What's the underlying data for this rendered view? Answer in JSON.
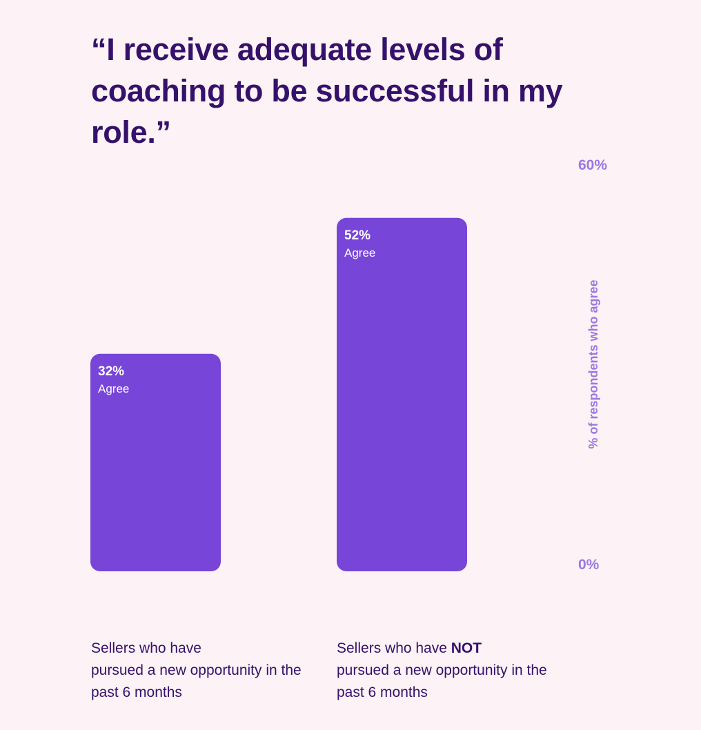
{
  "chart_data": {
    "type": "bar",
    "title": "“I receive adequate levels of coaching to be successful in my role.”",
    "ylabel": "% of respondents who agree",
    "ylim": [
      0,
      60
    ],
    "y_ticks": [
      "60%",
      "0%"
    ],
    "bar_color": "#7745d8",
    "value_suffix": "Agree",
    "categories": [
      {
        "label_before": "Sellers who have ",
        "label_emphasis": "",
        "label_after": "pursued a new opportunity in the past 6 months"
      },
      {
        "label_before": "Sellers who have ",
        "label_emphasis": "NOT",
        "label_after": "pursued a new opportunity in the past 6 months"
      }
    ],
    "values": [
      32,
      52
    ],
    "value_labels": [
      "32%",
      "52%"
    ]
  }
}
